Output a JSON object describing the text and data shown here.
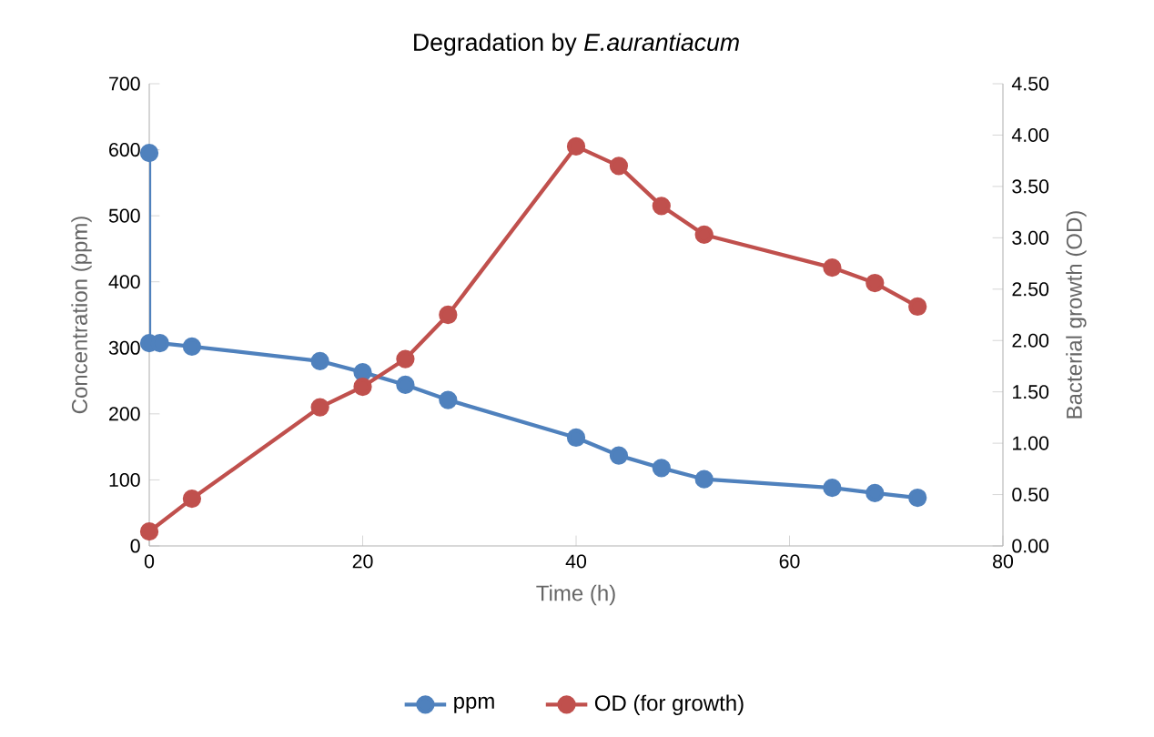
{
  "chart_data": {
    "type": "line",
    "title": "Degradation by *E.aurantiacum*",
    "xlabel": "Time (h)",
    "ylabel": "Concentration (ppm)",
    "y2label": "Bacterial growth (OD)",
    "xlim": [
      0,
      80
    ],
    "xticks": [
      0,
      20,
      40,
      60,
      80
    ],
    "ylim": [
      0,
      700
    ],
    "yticks": [
      0,
      100,
      200,
      300,
      400,
      500,
      600,
      700
    ],
    "y2lim": [
      0,
      4.5
    ],
    "y2ticks": [
      {
        "value": 0,
        "label": "0.00"
      },
      {
        "value": 0.5,
        "label": "0.50"
      },
      {
        "value": 1,
        "label": "1.00"
      },
      {
        "value": 1.5,
        "label": "1.50"
      },
      {
        "value": 2,
        "label": "2.00"
      },
      {
        "value": 2.5,
        "label": "2.50"
      },
      {
        "value": 3,
        "label": "3.00"
      },
      {
        "value": 3.5,
        "label": "3.50"
      },
      {
        "value": 4,
        "label": "4.00"
      },
      {
        "value": 4.5,
        "label": "4.50"
      }
    ],
    "grid": false,
    "legend": "bottom",
    "marker": "circle",
    "line_style": "solid",
    "series": [
      {
        "name": "ppm",
        "color": "#4f81bd",
        "x": [
          0,
          0,
          1,
          4,
          16,
          20,
          24,
          28,
          40,
          44,
          48,
          52,
          64,
          68,
          72
        ],
        "values": [
          595,
          307,
          307,
          302,
          280,
          263,
          244,
          221,
          164,
          137,
          118,
          101,
          88,
          80,
          73
        ]
      },
      {
        "name": "OD (for growth)",
        "color": "#c0504d",
        "axis": "y2",
        "x": [
          0,
          4,
          16,
          20,
          24,
          28,
          40,
          44,
          48,
          52,
          64,
          68,
          72
        ],
        "values": [
          0.14,
          0.46,
          1.35,
          1.55,
          1.82,
          2.25,
          3.89,
          3.7,
          3.31,
          3.03,
          2.71,
          2.56,
          2.33
        ]
      }
    ]
  }
}
